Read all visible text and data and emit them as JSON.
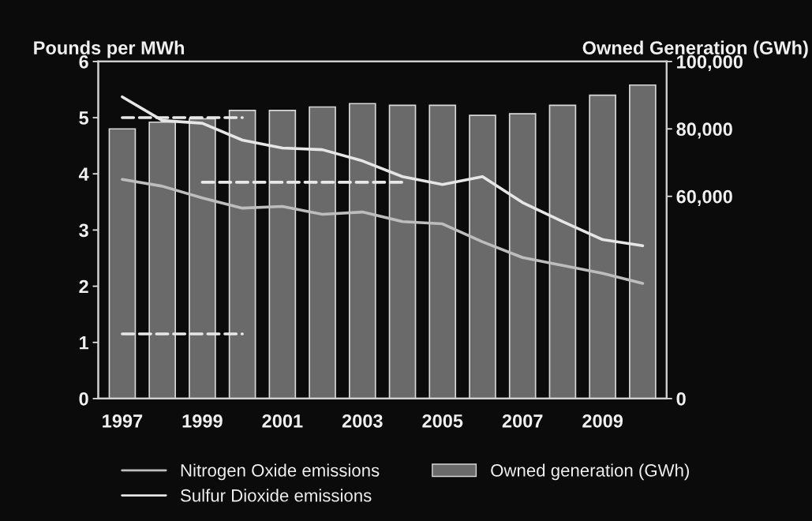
{
  "chart_data": {
    "type": "bar",
    "ylabel": "Pounds per MWh",
    "y2label": "Owned Generation (GWh)",
    "categories": [
      "1997",
      null,
      "1999",
      null,
      "2001",
      null,
      "2003",
      null,
      "2005",
      null,
      "2007",
      null,
      "2009",
      null
    ],
    "series": [
      {
        "name": "Nitrogen Oxide emissions",
        "type": "line",
        "color": "#bdbdbd",
        "values": [
          3.9,
          3.78,
          3.57,
          3.39,
          3.42,
          3.28,
          3.32,
          3.15,
          3.11,
          2.79,
          2.51,
          2.37,
          2.23,
          2.05
        ]
      },
      {
        "name": "Sulfur Dioxide emissions",
        "type": "line",
        "color": "#e6e6e6",
        "values": [
          5.37,
          4.95,
          4.9,
          4.6,
          4.46,
          4.43,
          4.23,
          3.95,
          3.81,
          3.95,
          3.49,
          3.15,
          2.83,
          2.72
        ]
      },
      {
        "name": "Owned generation (GWh)",
        "axis": "y2",
        "color": "#6a6a6a",
        "values": [
          80000,
          82000,
          83000,
          85500,
          85500,
          86500,
          87500,
          87000,
          87000,
          84000,
          84500,
          87000,
          90000,
          93000
        ]
      },
      {
        "type": "line",
        "line_style": "dashed",
        "color": "#e8e8e8",
        "values": [
          5.0,
          null,
          null,
          5.0,
          null,
          null,
          null,
          null,
          null,
          null,
          null,
          null,
          null,
          null
        ]
      },
      {
        "type": "line",
        "line_style": "dashed",
        "color": "#e8e8e8",
        "values": [
          null,
          null,
          3.85,
          null,
          null,
          null,
          null,
          3.85,
          null,
          null,
          null,
          null,
          null,
          null
        ]
      },
      {
        "type": "line",
        "line_style": "dashed",
        "color": "#e8e8e8",
        "values": [
          1.15,
          null,
          null,
          1.15,
          null,
          null,
          null,
          null,
          null,
          null,
          null,
          null,
          null,
          null
        ]
      }
    ],
    "ylim": [
      0,
      6
    ],
    "yticks": [
      0,
      1,
      2,
      3,
      4,
      5,
      6
    ],
    "y2lim": [
      0,
      100000
    ],
    "y2ticks": [
      {
        "value": 0,
        "label": "0"
      },
      {
        "value": 60000,
        "label": "60,000"
      },
      {
        "value": 80000,
        "label": "80,000"
      },
      {
        "value": 100000,
        "label": "100,000"
      }
    ],
    "grid": false,
    "legend": "bottom"
  }
}
